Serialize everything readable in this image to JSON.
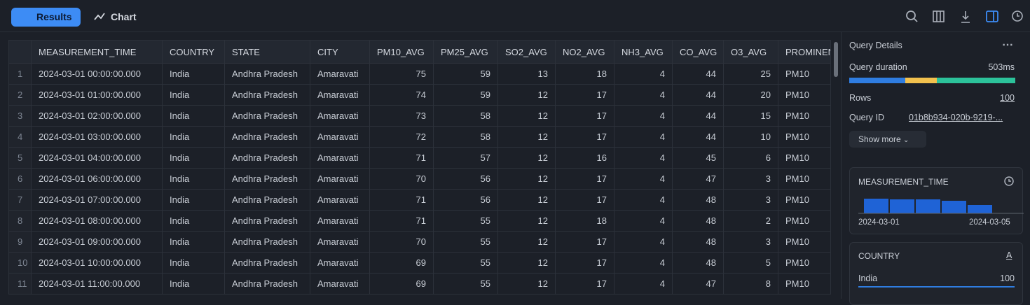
{
  "toolbar": {
    "tabs": [
      "Results",
      "Chart"
    ]
  },
  "table": {
    "columns": [
      "MEASUREMENT_TIME",
      "COUNTRY",
      "STATE",
      "CITY",
      "PM10_AVG",
      "PM25_AVG",
      "SO2_AVG",
      "NO2_AVG",
      "NH3_AVG",
      "CO_AVG",
      "O3_AVG",
      "PROMINEN"
    ],
    "rows": [
      [
        1,
        "2024-03-01 00:00:00.000",
        "India",
        "Andhra Pradesh",
        "Amaravati",
        75,
        59,
        13,
        18,
        4,
        44,
        25,
        "PM10"
      ],
      [
        2,
        "2024-03-01 01:00:00.000",
        "India",
        "Andhra Pradesh",
        "Amaravati",
        74,
        59,
        12,
        17,
        4,
        44,
        20,
        "PM10"
      ],
      [
        3,
        "2024-03-01 02:00:00.000",
        "India",
        "Andhra Pradesh",
        "Amaravati",
        73,
        58,
        12,
        17,
        4,
        44,
        15,
        "PM10"
      ],
      [
        4,
        "2024-03-01 03:00:00.000",
        "India",
        "Andhra Pradesh",
        "Amaravati",
        72,
        58,
        12,
        17,
        4,
        44,
        10,
        "PM10"
      ],
      [
        5,
        "2024-03-01 04:00:00.000",
        "India",
        "Andhra Pradesh",
        "Amaravati",
        71,
        57,
        12,
        16,
        4,
        45,
        6,
        "PM10"
      ],
      [
        6,
        "2024-03-01 06:00:00.000",
        "India",
        "Andhra Pradesh",
        "Amaravati",
        70,
        56,
        12,
        17,
        4,
        47,
        3,
        "PM10"
      ],
      [
        7,
        "2024-03-01 07:00:00.000",
        "India",
        "Andhra Pradesh",
        "Amaravati",
        71,
        56,
        12,
        17,
        4,
        48,
        3,
        "PM10"
      ],
      [
        8,
        "2024-03-01 08:00:00.000",
        "India",
        "Andhra Pradesh",
        "Amaravati",
        71,
        55,
        12,
        18,
        4,
        48,
        2,
        "PM10"
      ],
      [
        9,
        "2024-03-01 09:00:00.000",
        "India",
        "Andhra Pradesh",
        "Amaravati",
        70,
        55,
        12,
        17,
        4,
        48,
        3,
        "PM10"
      ],
      [
        10,
        "2024-03-01 10:00:00.000",
        "India",
        "Andhra Pradesh",
        "Amaravati",
        69,
        55,
        12,
        17,
        4,
        48,
        5,
        "PM10"
      ],
      [
        11,
        "2024-03-01 11:00:00.000",
        "India",
        "Andhra Pradesh",
        "Amaravati",
        69,
        55,
        12,
        17,
        4,
        47,
        8,
        "PM10"
      ]
    ]
  },
  "details": {
    "title": "Query Details",
    "duration_label": "Query duration",
    "duration": "503ms",
    "rows_label": "Rows",
    "rows": "100",
    "query_id_label": "Query ID",
    "query_id": "01b8b934-020b-9219-...",
    "show_more": "Show more"
  },
  "cards": [
    {
      "title": "MEASUREMENT_TIME",
      "start": "2024-03-01",
      "end": "2024-03-05"
    },
    {
      "title": "COUNTRY",
      "icon": "A",
      "value_label": "India",
      "value": "100"
    }
  ]
}
